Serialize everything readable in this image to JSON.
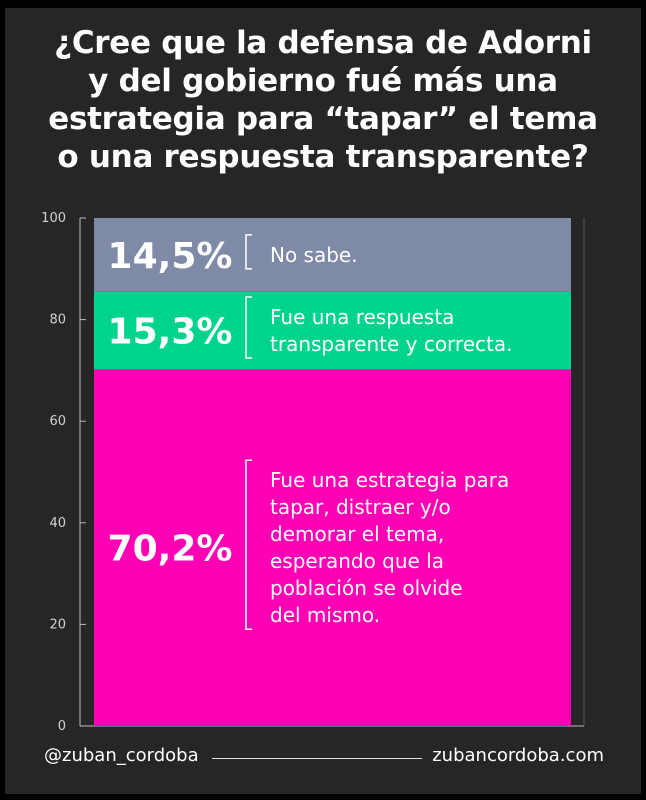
{
  "title_lines": [
    "¿Cree que la defensa de Adorni",
    "y del gobierno fué más una",
    "estrategia para “tapar” el tema",
    "o una respuesta transparente?"
  ],
  "footer": {
    "handle": "@zuban_cordoba",
    "website": "zubancordoba.com"
  },
  "chart_data": {
    "type": "bar",
    "stacked": true,
    "ylim": [
      0,
      100
    ],
    "yticks": [
      "0",
      "20",
      "40",
      "60",
      "80",
      "100"
    ],
    "series": [
      {
        "value": 70.2,
        "value_label": "70,2%",
        "label_lines": [
          "Fue una estrategia para",
          "tapar, distraer y/o",
          "demorar el tema,",
          "esperando que la",
          "población se olvide",
          "del mismo."
        ],
        "color": "#ff00b4"
      },
      {
        "value": 15.3,
        "value_label": "15,3%",
        "label_lines": [
          "Fue una respuesta",
          "transparente y correcta."
        ],
        "color": "#00d48c"
      },
      {
        "value": 14.5,
        "value_label": "14,5%",
        "label_lines": [
          "No sabe."
        ],
        "color": "#7f8aa6"
      }
    ]
  }
}
